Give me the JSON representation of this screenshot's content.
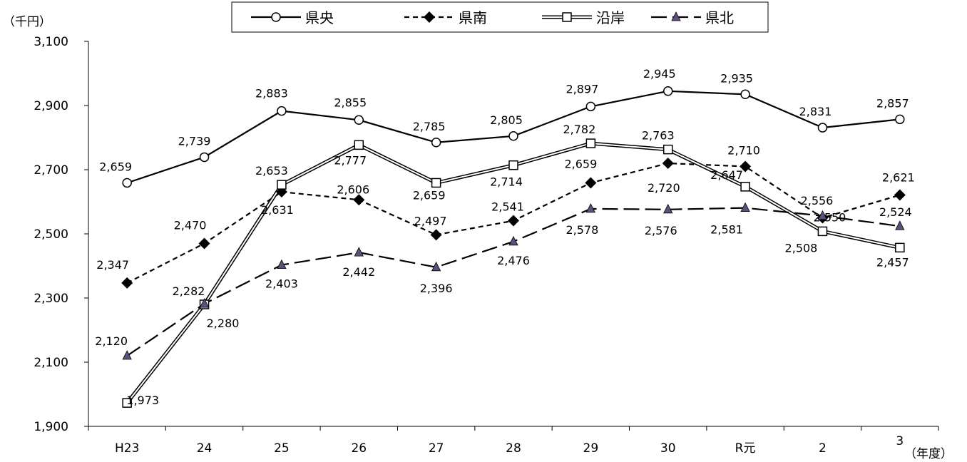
{
  "chart_data": {
    "type": "line",
    "y_unit": "（千円）",
    "x_unit": "（年度）",
    "categories": [
      "H23",
      "24",
      "25",
      "26",
      "27",
      "28",
      "29",
      "30",
      "R元",
      "2",
      "3"
    ],
    "ylim": [
      1900,
      3100
    ],
    "yticks": [
      1900,
      2100,
      2300,
      2500,
      2700,
      2900,
      3100
    ],
    "ytick_labels": [
      "1,900",
      "2,100",
      "2,300",
      "2,500",
      "2,700",
      "2,900",
      "3,100"
    ],
    "grid": false,
    "legend_position": "top",
    "series": [
      {
        "name": "県央",
        "marker": "circle-open",
        "line": "solid",
        "values": [
          2659,
          2739,
          2883,
          2855,
          2785,
          2805,
          2897,
          2945,
          2935,
          2831,
          2857
        ],
        "labels": [
          "2,659",
          "2,739",
          "2,883",
          "2,855",
          "2,785",
          "2,805",
          "2,897",
          "2,945",
          "2,935",
          "2,831",
          "2,857"
        ]
      },
      {
        "name": "県南",
        "marker": "diamond-filled",
        "line": "dashed",
        "values": [
          2347,
          2470,
          2631,
          2606,
          2497,
          2541,
          2659,
          2720,
          2710,
          2550,
          2621
        ],
        "labels": [
          "2,347",
          "2,470",
          "2,631",
          "2,606",
          "2,497",
          "2,541",
          "2,659",
          "2,720",
          "2,710",
          "2,550",
          "2,621"
        ]
      },
      {
        "name": "沿岸",
        "marker": "square-open",
        "line": "double",
        "values": [
          1973,
          2280,
          2653,
          2777,
          2659,
          2714,
          2782,
          2763,
          2647,
          2508,
          2457
        ],
        "labels": [
          "1,973",
          "2,280",
          "2,653",
          "2,777",
          "2,659",
          "2,714",
          "2,782",
          "2,763",
          "2,647",
          "2,508",
          "2,457"
        ]
      },
      {
        "name": "県北",
        "marker": "triangle-filled",
        "line": "long-dash",
        "values": [
          2120,
          2282,
          2403,
          2442,
          2396,
          2476,
          2578,
          2576,
          2581,
          2556,
          2524
        ],
        "labels": [
          "2,120",
          "2,282",
          "2,403",
          "2,442",
          "2,396",
          "2,476",
          "2,578",
          "2,576",
          "2,581",
          "2,556",
          "2,524"
        ]
      }
    ]
  }
}
